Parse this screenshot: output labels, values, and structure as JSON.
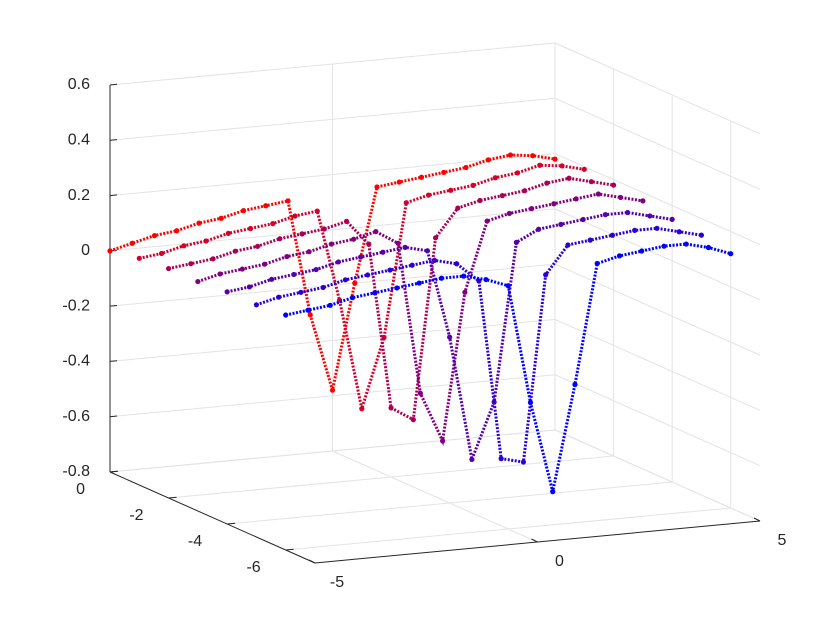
{
  "chart_data": {
    "type": "scatter3d",
    "x": [
      -5,
      -4.5,
      -4,
      -3.5,
      -3,
      -2.5,
      -2,
      -1.5,
      -1,
      -0.5,
      0,
      0.5,
      1,
      1.5,
      2,
      2.5,
      3,
      3.5,
      4,
      4.5,
      5
    ],
    "series": [
      {
        "y": 0,
        "color": "#ff0000",
        "z": [
          0.0,
          0.02,
          0.04,
          0.05,
          0.07,
          0.08,
          0.1,
          0.11,
          0.12,
          -0.3,
          -0.58,
          -0.2,
          0.14,
          0.15,
          0.16,
          0.17,
          0.18,
          0.2,
          0.21,
          0.2,
          0.18
        ]
      },
      {
        "y": -1,
        "color": "#d5002a",
        "z": [
          0.02,
          0.03,
          0.05,
          0.06,
          0.08,
          0.09,
          0.1,
          0.12,
          0.13,
          -0.2,
          -0.6,
          -0.35,
          0.13,
          0.15,
          0.16,
          0.17,
          0.19,
          0.2,
          0.22,
          0.21,
          0.19
        ]
      },
      {
        "y": -2,
        "color": "#aa0055",
        "z": [
          0.03,
          0.04,
          0.05,
          0.07,
          0.08,
          0.1,
          0.11,
          0.12,
          0.14,
          0.05,
          -0.55,
          -0.6,
          0.05,
          0.15,
          0.17,
          0.18,
          0.19,
          0.21,
          0.22,
          0.2,
          0.18
        ]
      },
      {
        "y": -3,
        "color": "#800080",
        "z": [
          0.03,
          0.05,
          0.06,
          0.07,
          0.09,
          0.1,
          0.12,
          0.13,
          0.15,
          0.1,
          -0.45,
          -0.63,
          -0.1,
          0.15,
          0.17,
          0.18,
          0.19,
          0.2,
          0.21,
          0.19,
          0.17
        ]
      },
      {
        "y": -4,
        "color": "#5500aa",
        "z": [
          0.04,
          0.05,
          0.07,
          0.08,
          0.09,
          0.11,
          0.12,
          0.13,
          0.14,
          0.12,
          -0.2,
          -0.65,
          -0.45,
          0.12,
          0.16,
          0.17,
          0.18,
          0.19,
          0.19,
          0.17,
          0.15
        ]
      },
      {
        "y": -5,
        "color": "#2a00d5",
        "z": [
          0.04,
          0.06,
          0.07,
          0.08,
          0.1,
          0.11,
          0.12,
          0.13,
          0.14,
          0.12,
          0.05,
          -0.6,
          -0.62,
          0.05,
          0.15,
          0.16,
          0.17,
          0.18,
          0.18,
          0.16,
          0.14
        ]
      },
      {
        "y": -6,
        "color": "#0000ff",
        "z": [
          0.05,
          0.06,
          0.07,
          0.09,
          0.1,
          0.11,
          0.12,
          0.13,
          0.13,
          0.11,
          0.08,
          -0.35,
          -0.68,
          -0.3,
          0.13,
          0.15,
          0.16,
          0.17,
          0.17,
          0.15,
          0.12
        ]
      }
    ],
    "xlim": [
      -5,
      5
    ],
    "ylim": [
      -7,
      0
    ],
    "zlim": [
      -0.8,
      0.6
    ],
    "xticks": [
      -5,
      0,
      5
    ],
    "yticks": [
      -6,
      -4,
      -2,
      0
    ],
    "zticks": [
      -0.8,
      -0.6,
      -0.4,
      -0.2,
      0,
      0.2,
      0.4,
      0.6
    ],
    "grid": true
  }
}
